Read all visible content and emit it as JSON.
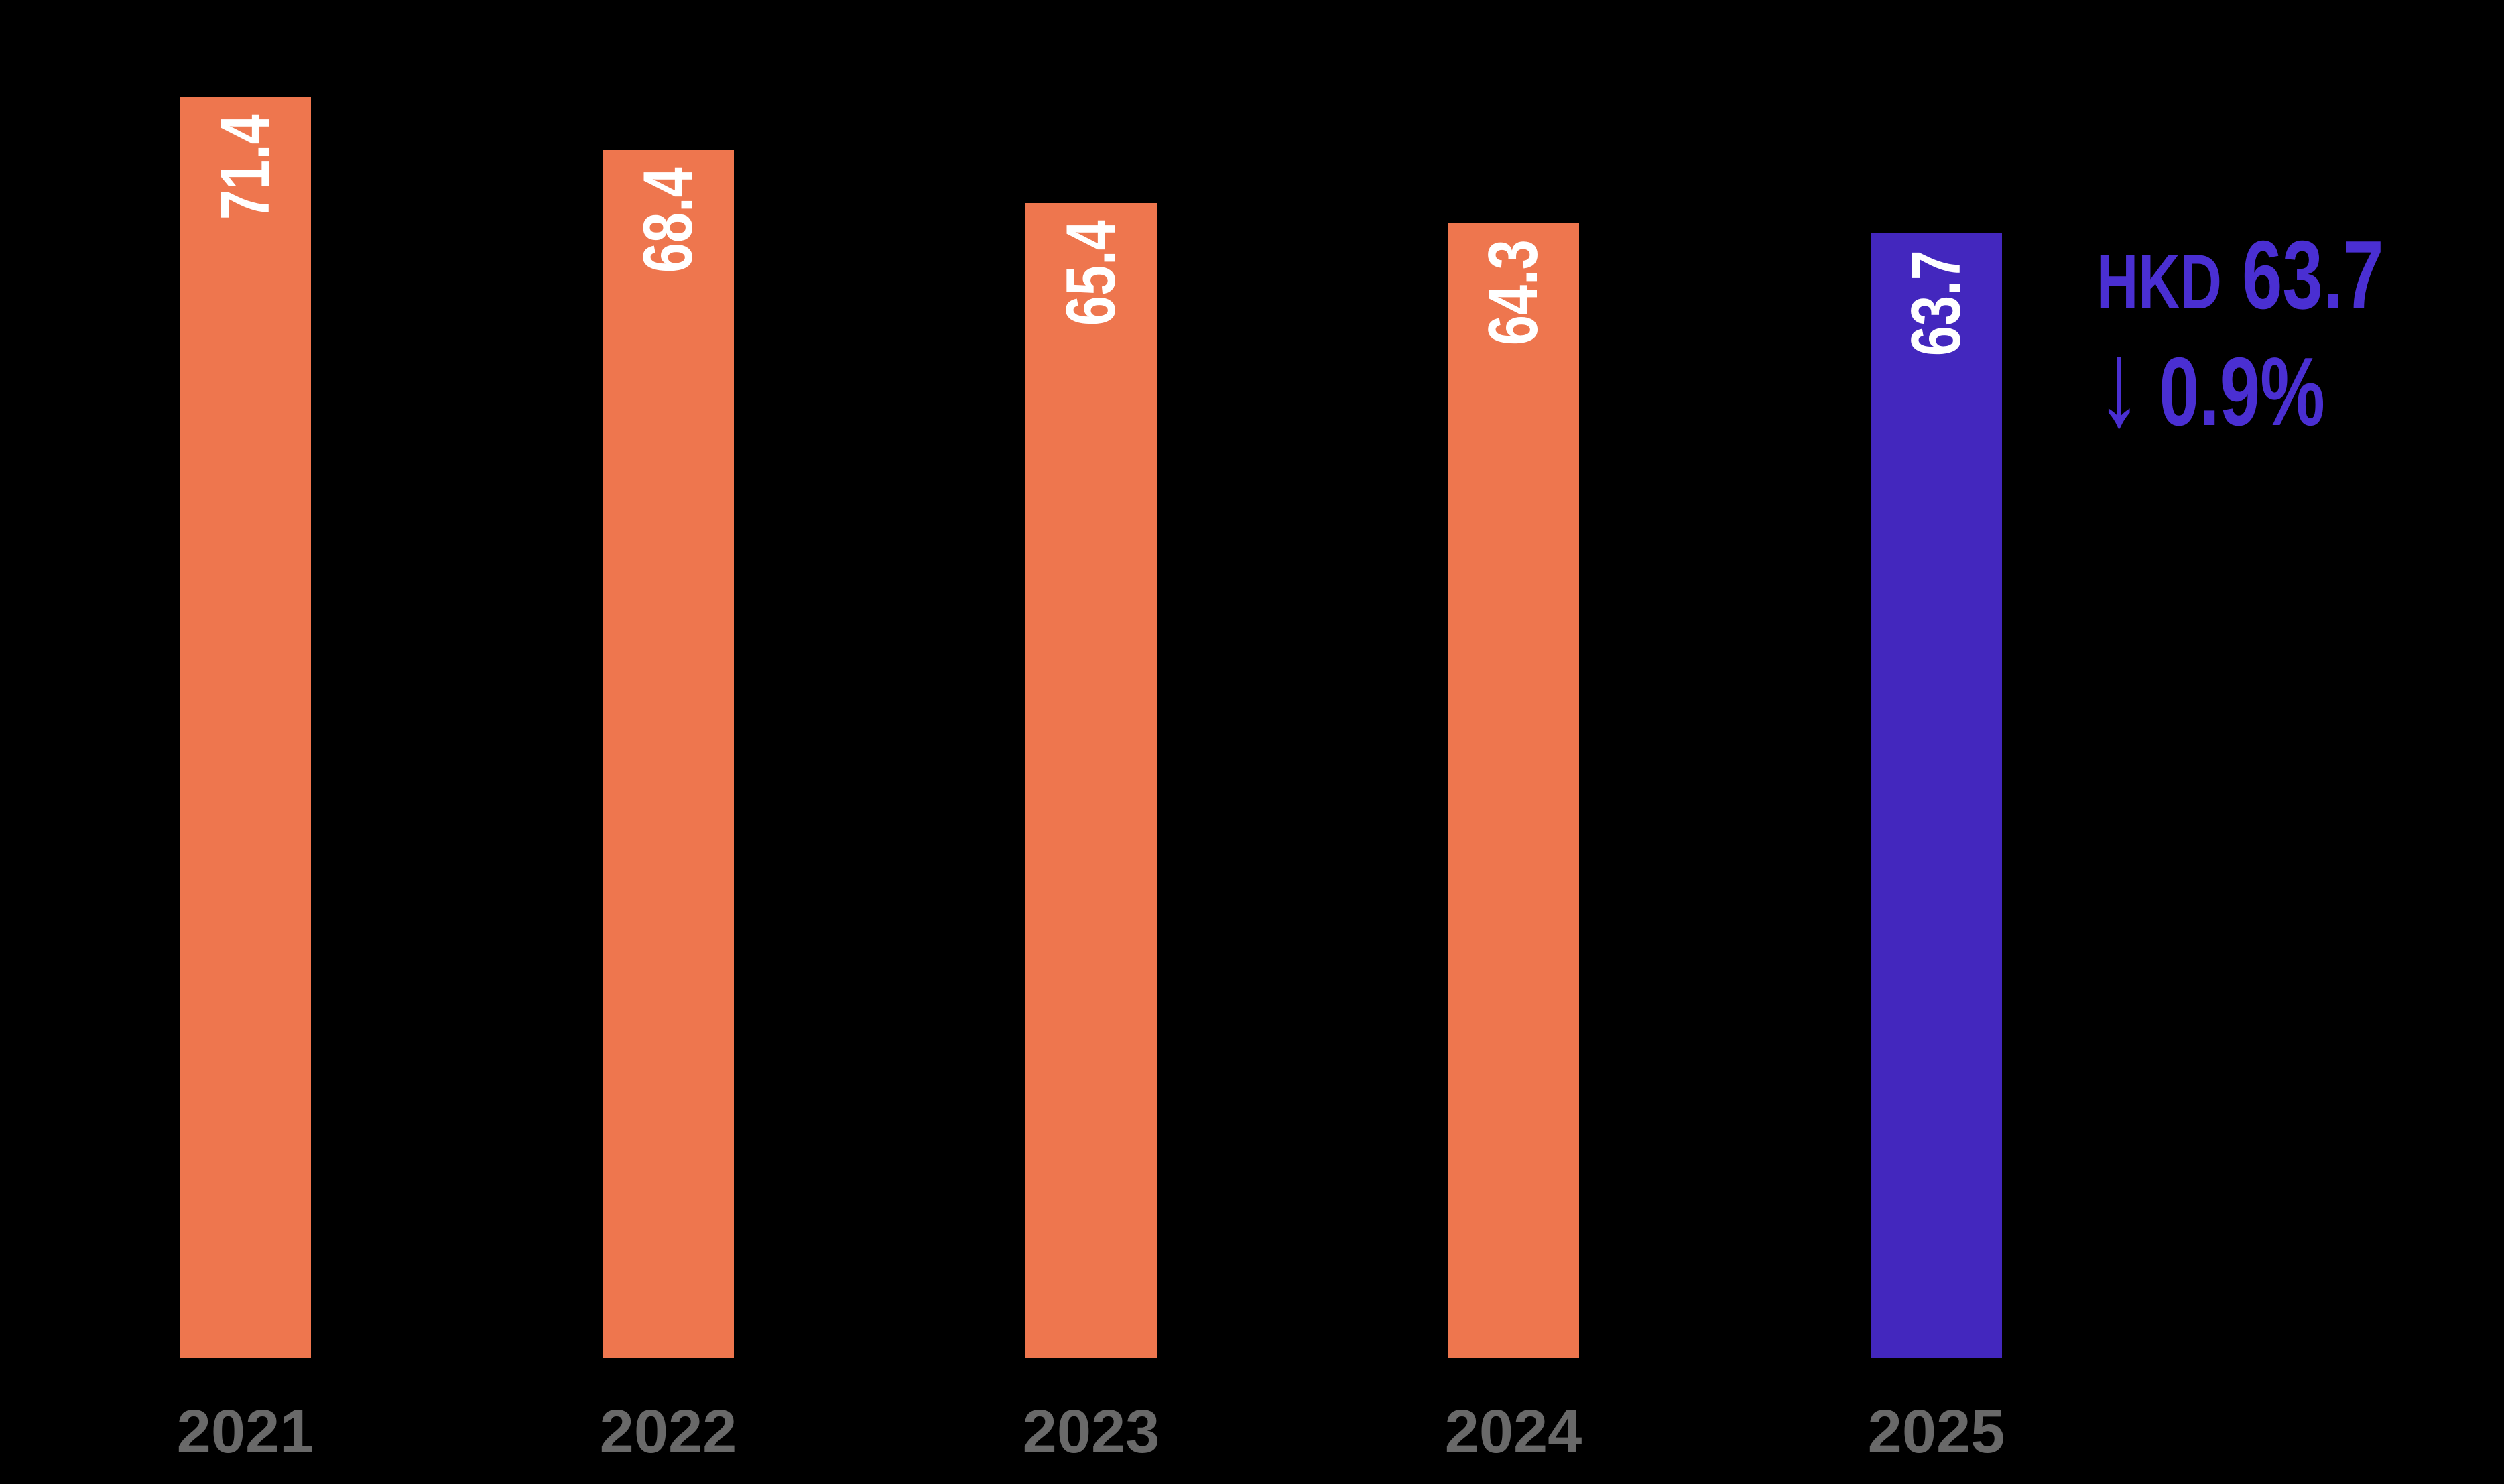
{
  "chart_data": {
    "type": "bar",
    "title": "",
    "xlabel": "",
    "ylabel": "",
    "categories": [
      "2021",
      "2022",
      "2023",
      "2024",
      "2025"
    ],
    "values": [
      71.4,
      68.4,
      65.4,
      64.3,
      63.7
    ],
    "bar_labels": [
      "71.4",
      "68.4",
      "65.4",
      "64.3",
      "63.7"
    ],
    "highlight_index": 4,
    "ylim": [
      0,
      77
    ],
    "grid": false,
    "legend": false,
    "axes_visible": false,
    "bar_label_rotation": 90,
    "annotation": {
      "currency": "HKD",
      "value": "63.7",
      "arrow_glyph": "↓",
      "change": "0.9%",
      "direction": "down"
    },
    "colors": {
      "background": "#000000",
      "bar_default": "#EE764E",
      "bar_highlight": "#4327BE",
      "bar_value_label": "#FFFFFF",
      "category_label": "#696969",
      "annotation_text": "#4A2FD2"
    }
  }
}
